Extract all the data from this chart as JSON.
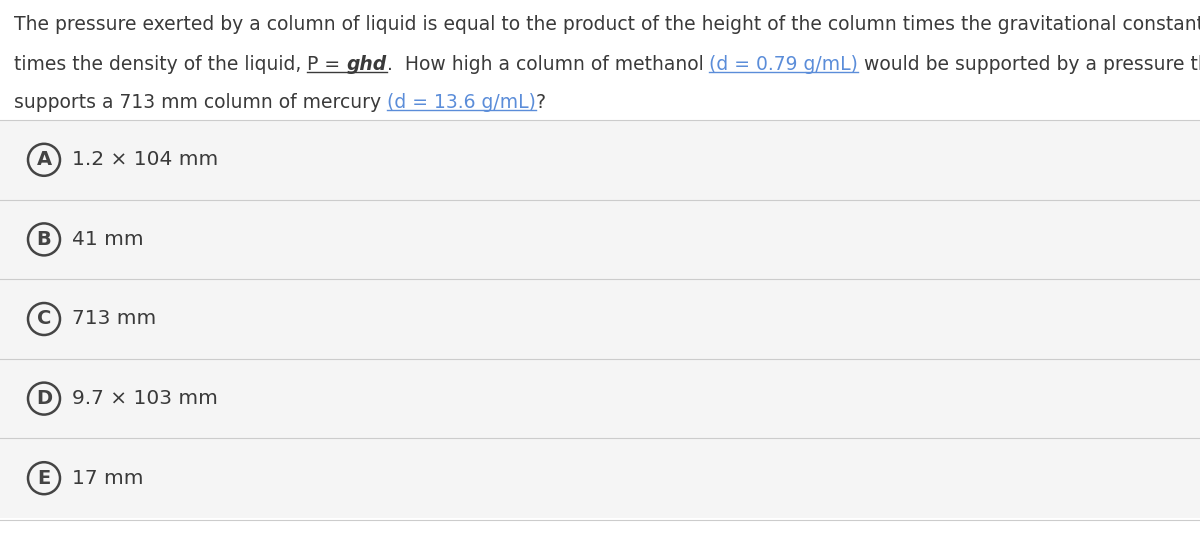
{
  "background_color": "#ffffff",
  "question_color": "#3a3a3a",
  "option_bg_color": "#f5f5f5",
  "circle_color": "#444444",
  "text_color": "#3a3a3a",
  "blue_color": "#5b8dd9",
  "separator_color": "#cccccc",
  "q_line1": "The pressure exerted by a column of liquid is equal to the product of the height of the column times the gravitational constant",
  "q_line2_pre": "times the density of the liquid, ",
  "q_line2_formula_pre": "P = ",
  "q_line2_formula": "ghd",
  "q_line2_post1": ".  How high a column of methanol ",
  "q_line2_methanol": "(d = 0.79 g/mL)",
  "q_line2_post2": " would be supported by a pressure that",
  "q_line3_pre": "supports a 713 mm column of mercury ",
  "q_line3_mercury": "(d = 13.6 g/mL)",
  "q_line3_post": "?",
  "options": [
    {
      "letter": "A",
      "text": "1.2 × 104 mm"
    },
    {
      "letter": "B",
      "text": "41 mm"
    },
    {
      "letter": "C",
      "text": "713 mm"
    },
    {
      "letter": "D",
      "text": "9.7 × 103 mm"
    },
    {
      "letter": "E",
      "text": "17 mm"
    }
  ],
  "figsize": [
    12.0,
    5.38
  ],
  "dpi": 100,
  "q_fontsize": 13.5,
  "opt_fontsize": 14.5,
  "opt_letter_fontsize": 14.0
}
